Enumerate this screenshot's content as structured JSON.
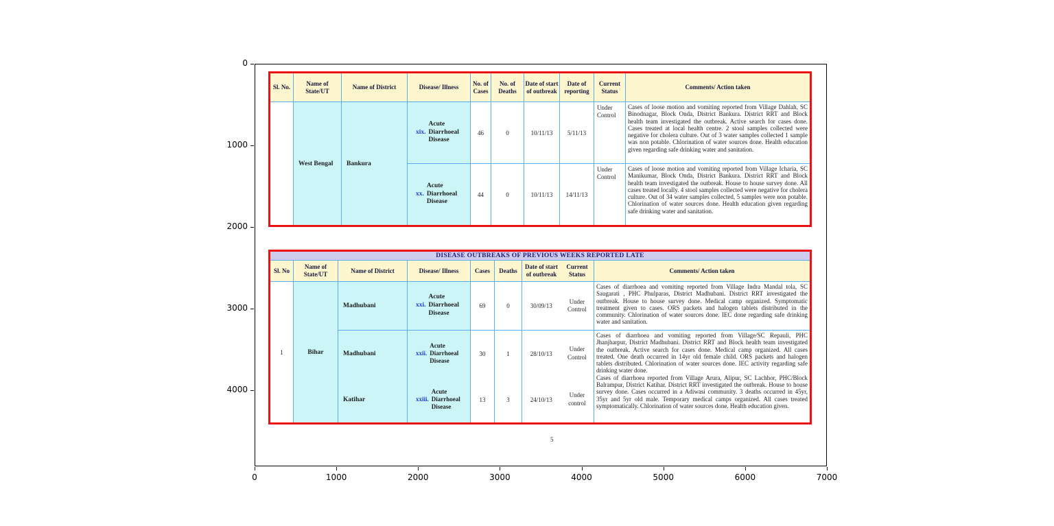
{
  "figure": {
    "x_ticks": [
      "0",
      "1000",
      "2000",
      "3000",
      "4000",
      "5000",
      "6000",
      "7000"
    ],
    "y_ticks": [
      "0",
      "1000",
      "2000",
      "3000",
      "4000"
    ],
    "page_number": "5"
  },
  "colors": {
    "table_border": "#ee1111",
    "grid_line": "#5aabf0",
    "header_bg": "#fdf6cf",
    "cell_bg": "#ccf5f7",
    "title_bg": "#cfccee",
    "numeral_blue": "#1f3bd0",
    "title_text": "#22227a"
  },
  "table1": {
    "headers": [
      "Sl. No.",
      "Name of State/UT",
      "Name of District",
      "Disease/ Illness",
      "No. of Cases",
      "No. of Deaths",
      "Date of start of outbreak",
      "Date of reporting",
      "Current Status",
      "Comments/ Action taken"
    ],
    "sl_no": "",
    "state": "West Bengal",
    "district": "Bankura",
    "rows": [
      {
        "num": "xix.",
        "disease": "Acute Diarrhoeal Disease",
        "cases": "46",
        "deaths": "0",
        "date_start": "10/11/13",
        "date_report": "5/11/13",
        "status": "Under Control",
        "comments": "Cases of loose motion and vomiting reported from Village Dahlah, SC Binodnagar, Block Onda, District Bankura. District RRT and Block health team investigated the outbreak. Active search for cases done. Cases treated at local health centre. 2 stool samples collected were negative for cholera culture. Out of 3 water samples collected 1 sample was non potable. Chlorination of water sources done. Health education given regarding safe drinking water and sanitation."
      },
      {
        "num": "xx.",
        "disease": "Acute Diarrhoeal Disease",
        "cases": "44",
        "deaths": "0",
        "date_start": "10/11/13",
        "date_report": "14/11/13",
        "status": "Under Control",
        "comments": "Cases of loose motion and vomiting reported from Village Icharia, SC Manikumar, Block Onda, District Bankura. District RRT and Block health team investigated the outbreak. House to house survey done. All cases treated locally. 4 stool samples collected were negative for cholera culture. Out of 34 water samples collected, 5 samples were non potable. Chlorination of water sources done. Health education given regarding safe drinking water and sanitation."
      }
    ]
  },
  "table2": {
    "title": "DISEASE OUTBREAKS OF PREVIOUS WEEKS REPORTED LATE",
    "headers": [
      "Sl. No",
      "Name of State/UT",
      "Name of District",
      "Disease/ Illness",
      "Cases",
      "Deaths",
      "Date of start of outbreak",
      "Current Status",
      "Comments/ Action taken"
    ],
    "sl_no": "1",
    "state": "Bihar",
    "rows": [
      {
        "district": "Madhubani",
        "num": "xxi.",
        "disease": "Acute Diarrhoeal Disease",
        "cases": "69",
        "deaths": "0",
        "date_start": "30/09/13",
        "status": "Under Control",
        "comments": "Cases of diarrhoea and vomiting reported from Village Indra Mandal tola, SC Saugarati , PHC Phulparas, District Madhubani. District RRT investigated the outbreak. House to house survey done. Medical camp organized. Symptomatic treatment given to cases. ORS packets and halogen tablets distributed in the community. Chlorination of water sources done. IEC done regarding safe drinking water and sanitation."
      },
      {
        "district": "Madhubani",
        "num": "xxii.",
        "disease": "Acute Diarrhoeal Disease",
        "cases": "30",
        "deaths": "1",
        "date_start": "28/10/13",
        "status": "Under Control",
        "comments": "Cases of diarrhoea and vomiting reported from Village/SC Repauli, PHC Jhanjharpur, District Madhubani. District RRT and Block health team investigated the outbreak. Active search for cases done. Medical camp organized. All cases treated. One death occurred in 14yr old female child. ORS packets and halogen tablets distributed. Chlorination of water sources done. IEC activity regarding safe drinking water done."
      },
      {
        "district": "Katihar",
        "num": "xxiii.",
        "disease": "Acute Diarrhoeal Disease",
        "cases": "13",
        "deaths": "3",
        "date_start": "24/10/13",
        "status": "Under control",
        "comments": "Cases of diarrhoea reported from Village Arura, Alipur, SC Lachhor, PHC/Block Balrampur, District Katihar. District RRT investigated the outbreak. House to house survey done. Cases occurred in a Adiwasi community. 3 deaths occurred in 45yr, 35yr and 5yr old male. Temporary medical camps organized. All cases treated symptomatically. Chlorination of water sources done. Health education given."
      }
    ]
  }
}
